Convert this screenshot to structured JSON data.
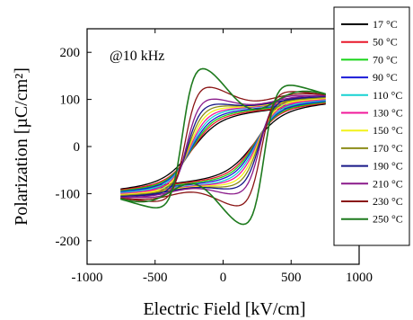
{
  "chart_data": {
    "type": "line",
    "title": "",
    "annotation": "@10 kHz",
    "xlabel": "Electric Field [kV/cm]",
    "ylabel": "Polarization [µC/cm²]",
    "xlim": [
      -1000,
      1000
    ],
    "ylim": [
      -250,
      250
    ],
    "xticks": [
      -1000,
      -500,
      0,
      500,
      1000
    ],
    "yticks": [
      -200,
      -100,
      0,
      100,
      200
    ],
    "x_tick_labels": [
      "-1000",
      "-500",
      "0",
      "500",
      "1000"
    ],
    "y_tick_labels": [
      "-200",
      "-100",
      "0",
      "100",
      "200"
    ],
    "grid": false,
    "legend_position": "right",
    "series": [
      {
        "name": "17 °C",
        "color": "#000000",
        "emax": 750,
        "pmax": 90,
        "pr": 55,
        "ec": 230,
        "k": 200,
        "cf": 0.0
      },
      {
        "name": "50 °C",
        "color": "#e8182a",
        "emax": 750,
        "pmax": 92,
        "pr": 60,
        "ec": 230,
        "k": 170,
        "cf": 0.0
      },
      {
        "name": "70 °C",
        "color": "#18d418",
        "emax": 750,
        "pmax": 94,
        "pr": 64,
        "ec": 235,
        "k": 160,
        "cf": 0.0
      },
      {
        "name": "90 °C",
        "color": "#1a1ad8",
        "emax": 750,
        "pmax": 96,
        "pr": 68,
        "ec": 240,
        "k": 150,
        "cf": 0.0
      },
      {
        "name": "110 °C",
        "color": "#16d2d2",
        "emax": 750,
        "pmax": 98,
        "pr": 73,
        "ec": 245,
        "k": 140,
        "cf": 0.0
      },
      {
        "name": "130 °C",
        "color": "#f0189a",
        "emax": 750,
        "pmax": 100,
        "pr": 78,
        "ec": 250,
        "k": 130,
        "cf": 0.01
      },
      {
        "name": "150 °C",
        "color": "#f2f21a",
        "emax": 750,
        "pmax": 102,
        "pr": 84,
        "ec": 255,
        "k": 120,
        "cf": 0.02
      },
      {
        "name": "170 °C",
        "color": "#8c8c18",
        "emax": 750,
        "pmax": 104,
        "pr": 90,
        "ec": 260,
        "k": 110,
        "cf": 0.03
      },
      {
        "name": "190 °C",
        "color": "#181888",
        "emax": 750,
        "pmax": 106,
        "pr": 97,
        "ec": 265,
        "k": 100,
        "cf": 0.05
      },
      {
        "name": "210 °C",
        "color": "#8a1a8a",
        "emax": 750,
        "pmax": 108,
        "pr": 110,
        "ec": 270,
        "k": 95,
        "cf": 0.08
      },
      {
        "name": "230 °C",
        "color": "#8a1414",
        "emax": 750,
        "pmax": 110,
        "pr": 135,
        "ec": 280,
        "k": 90,
        "cf": 0.12
      },
      {
        "name": "250 °C",
        "color": "#1e7a1e",
        "emax": 750,
        "pmax": 112,
        "pr": 175,
        "ec": 300,
        "k": 85,
        "cf": 0.3
      }
    ]
  }
}
